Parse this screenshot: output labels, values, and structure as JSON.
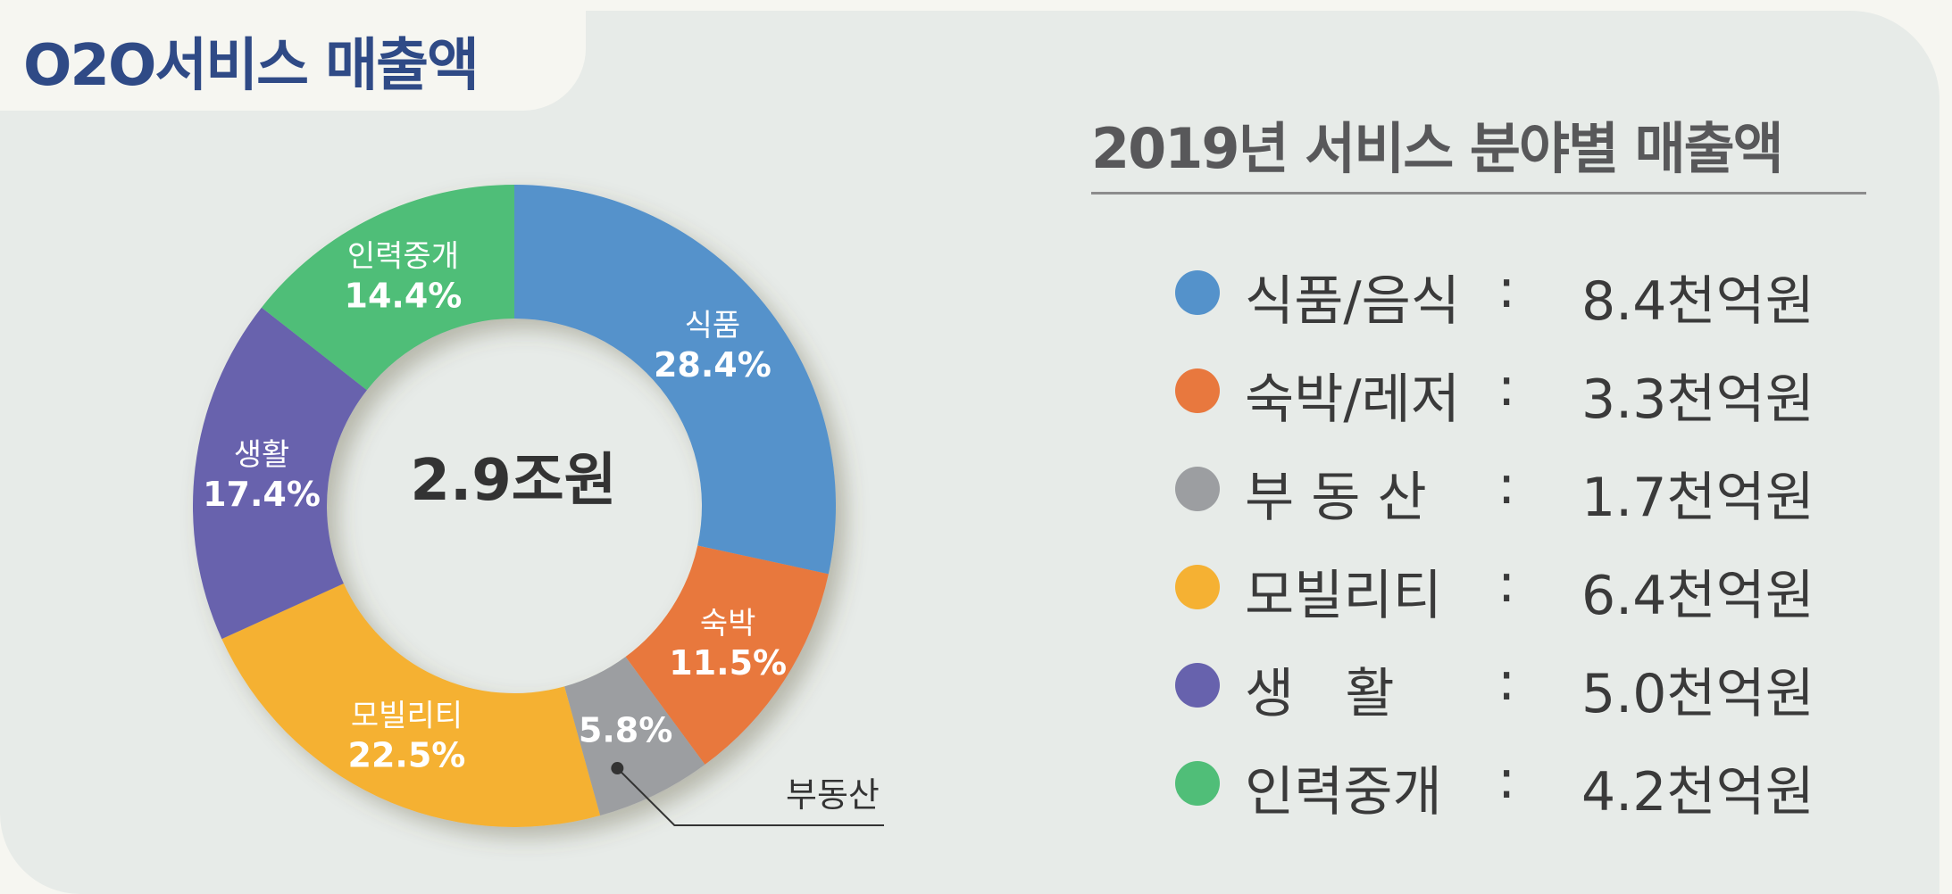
{
  "header": {
    "title": "O2O서비스 매출액"
  },
  "legend": {
    "title": "2019년 서비스 분야별 매출액",
    "separator": ":",
    "items": [
      {
        "name": "식품/음식",
        "value": "8.4천억원",
        "color": "#5492cb"
      },
      {
        "name": "숙박/레저",
        "value": "3.3천억원",
        "color": "#e8783e"
      },
      {
        "name": "부 동 산",
        "value": "1.7천억원",
        "color": "#9c9ea1"
      },
      {
        "name": "모빌리티",
        "value": "6.4천억원",
        "color": "#f5b133"
      },
      {
        "name": "생   활",
        "value": "5.0천억원",
        "color": "#6762ad"
      },
      {
        "name": "인력중개",
        "value": "4.2천억원",
        "color": "#50be78"
      }
    ]
  },
  "chart_data": {
    "type": "pie",
    "title": "",
    "center_label": "2.9조원",
    "categories": [
      "식품",
      "숙박",
      "부동산",
      "모빌리티",
      "생활",
      "인력중개"
    ],
    "values": [
      28.4,
      11.5,
      5.8,
      22.5,
      17.4,
      14.4
    ],
    "value_labels": [
      "28.4%",
      "11.5%",
      "5.8%",
      "22.5%",
      "17.4%",
      "14.4%"
    ],
    "colors": [
      "#5492cb",
      "#e8783e",
      "#9c9ea1",
      "#f5b133",
      "#6762ad",
      "#50be78"
    ],
    "annotation": "부동산"
  }
}
